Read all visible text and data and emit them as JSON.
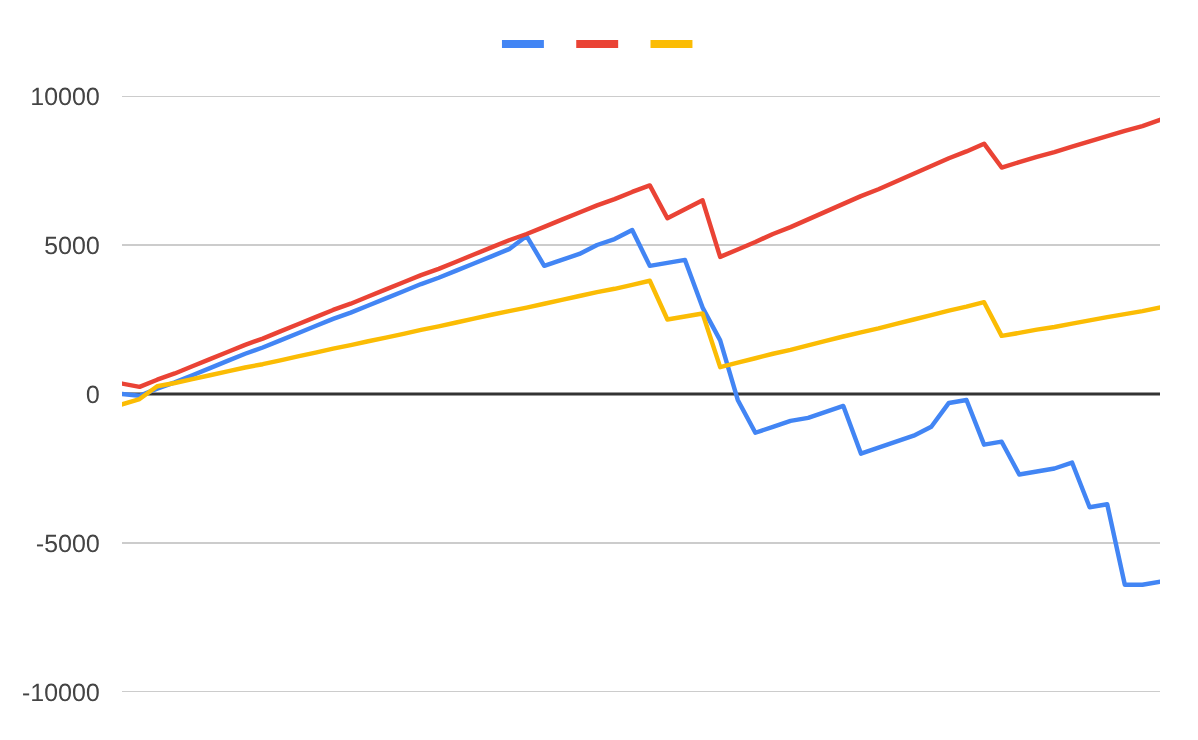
{
  "chart_data": {
    "type": "line",
    "categories": [
      null,
      null,
      null,
      null,
      null,
      null,
      null,
      null,
      null,
      null,
      null,
      null,
      null,
      null,
      null,
      null,
      null,
      null,
      null,
      null,
      null,
      null,
      null,
      null,
      null,
      null,
      null,
      null,
      null,
      null,
      null,
      null,
      null,
      null,
      null,
      null,
      null,
      null,
      null,
      null,
      null,
      null,
      null,
      null,
      null,
      null,
      null,
      null,
      null,
      null,
      null,
      null,
      null,
      null,
      null,
      null,
      null,
      null,
      null,
      null
    ],
    "series": [
      {
        "color": "#4285f4",
        "values": [
          0,
          -60,
          180,
          390,
          630,
          870,
          1110,
          1350,
          1560,
          1800,
          2040,
          2280,
          2520,
          2730,
          2970,
          3210,
          3450,
          3690,
          3900,
          4140,
          4380,
          4620,
          4860,
          5300,
          4300,
          4500,
          4700,
          5000,
          5200,
          5500,
          4300,
          4400,
          4500,
          2900,
          1800,
          -200,
          -1300,
          -1100,
          -900,
          -800,
          -600,
          -400,
          -2000,
          -1800,
          -1600,
          -1400,
          -1100,
          -300,
          -200,
          -1700,
          -1600,
          -2700,
          -2600,
          -2500,
          -2300,
          -3800,
          -3700,
          -6400,
          -6400,
          -6300
        ]
      },
      {
        "color": "#ea4335",
        "values": [
          350,
          240,
          480,
          690,
          930,
          1170,
          1410,
          1650,
          1860,
          2100,
          2340,
          2580,
          2820,
          3030,
          3270,
          3510,
          3750,
          3990,
          4200,
          4440,
          4680,
          4920,
          5160,
          5370,
          5610,
          5850,
          6090,
          6330,
          6540,
          6780,
          7000,
          5900,
          6200,
          6500,
          4600,
          4850,
          5100,
          5370,
          5600,
          5860,
          6120,
          6380,
          6640,
          6870,
          7130,
          7390,
          7650,
          7910,
          8140,
          8400,
          7600,
          7780,
          7960,
          8120,
          8300,
          8480,
          8650,
          8830,
          8990,
          9200
        ]
      },
      {
        "color": "#fbbc04",
        "values": [
          -350,
          -170,
          260,
          370,
          500,
          630,
          760,
          890,
          1000,
          1130,
          1260,
          1390,
          1520,
          1640,
          1770,
          1890,
          2020,
          2150,
          2270,
          2400,
          2530,
          2660,
          2780,
          2900,
          3030,
          3160,
          3290,
          3420,
          3530,
          3660,
          3800,
          2500,
          2600,
          2700,
          900,
          1050,
          1200,
          1350,
          1480,
          1630,
          1780,
          1930,
          2070,
          2200,
          2350,
          2500,
          2650,
          2800,
          2930,
          3080,
          1950,
          2050,
          2160,
          2250,
          2360,
          2470,
          2580,
          2680,
          2780,
          2900
        ]
      }
    ],
    "ylim": [
      -10000,
      10000
    ],
    "yticks": [
      -10000,
      -5000,
      0,
      5000,
      10000
    ],
    "ref_lines": [
      {
        "axis": "y",
        "value": 0,
        "color": "#333333"
      }
    ],
    "grid": "y",
    "marker": "none",
    "line_style": "solid"
  }
}
